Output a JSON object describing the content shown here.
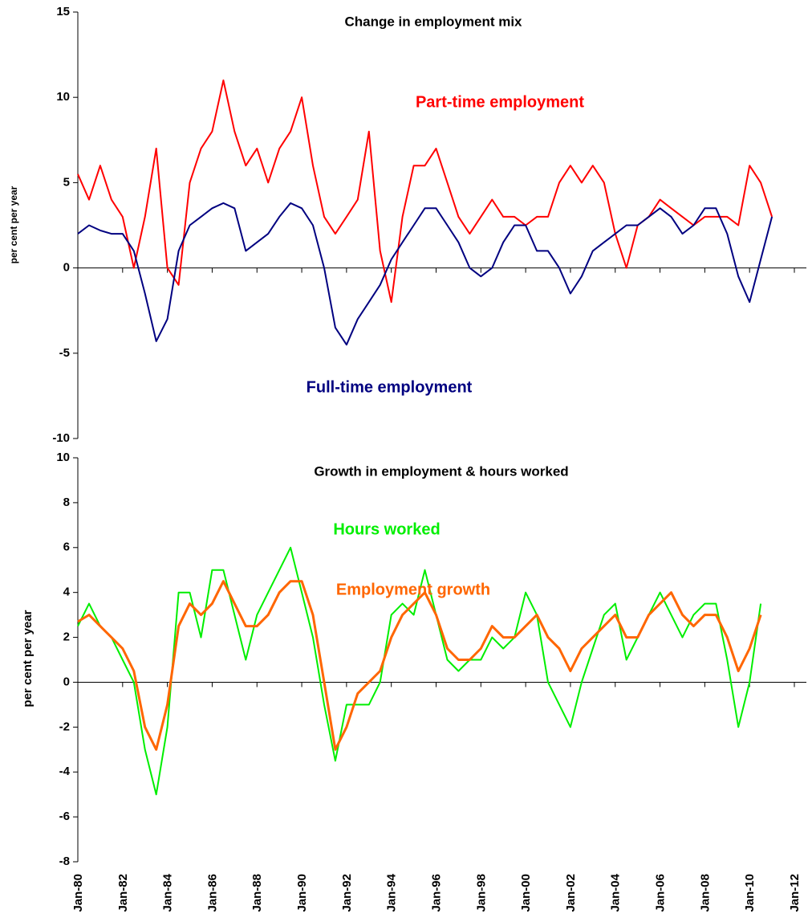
{
  "chart_data": [
    {
      "type": "line",
      "title": "Change in employment mix",
      "y_label": "per cent per year",
      "x": [
        1980,
        1980.5,
        1981,
        1981.5,
        1982,
        1982.5,
        1983,
        1983.5,
        1984,
        1984.5,
        1985,
        1985.5,
        1986,
        1986.5,
        1987,
        1987.5,
        1988,
        1988.5,
        1989,
        1989.5,
        1990,
        1990.5,
        1991,
        1991.5,
        1992,
        1992.5,
        1993,
        1993.5,
        1994,
        1994.5,
        1995,
        1995.5,
        1996,
        1996.5,
        1997,
        1997.5,
        1998,
        1998.5,
        1999,
        1999.5,
        2000,
        2000.5,
        2001,
        2001.5,
        2002,
        2002.5,
        2003,
        2003.5,
        2004,
        2004.5,
        2005,
        2005.5,
        2006,
        2006.5,
        2007,
        2007.5,
        2008,
        2008.5,
        2009,
        2009.5,
        2010,
        2010.5,
        2011
      ],
      "xlim": [
        1980,
        2012
      ],
      "xticks": [
        1980,
        1982,
        1984,
        1986,
        1988,
        1990,
        1992,
        1994,
        1996,
        1998,
        2000,
        2002,
        2004,
        2006,
        2008,
        2010,
        2012
      ],
      "ylim": [
        -10,
        15
      ],
      "yticks": [
        -10,
        -5,
        0,
        5,
        10,
        15
      ],
      "series": [
        {
          "name": "Part-time employment",
          "color": "#ff0000",
          "values": [
            5.5,
            4,
            6,
            4,
            3,
            0,
            3,
            7,
            0,
            -1,
            5,
            7,
            8,
            11,
            8,
            6,
            7,
            5,
            7,
            8,
            10,
            6,
            3,
            2,
            3,
            4,
            8,
            1,
            -2,
            3,
            6,
            6,
            7,
            5,
            3,
            2,
            3,
            4,
            3,
            3,
            2.5,
            3,
            3,
            5,
            6,
            5,
            6,
            5,
            2,
            0,
            2.5,
            3,
            4,
            3.5,
            3,
            2.5,
            3,
            3,
            3,
            2.5,
            6,
            5,
            3
          ]
        },
        {
          "name": "Full-time employment",
          "color": "#000080",
          "values": [
            2,
            2.5,
            2.2,
            2,
            2,
            1,
            -1.5,
            -4.3,
            -3,
            1,
            2.5,
            3,
            3.5,
            3.8,
            3.5,
            1,
            1.5,
            2,
            3,
            3.8,
            3.5,
            2.5,
            0,
            -3.5,
            -4.5,
            -3,
            -2,
            -1,
            0.5,
            1.5,
            2.5,
            3.5,
            3.5,
            2.5,
            1.5,
            0,
            -0.5,
            0,
            1.5,
            2.5,
            2.5,
            1,
            1,
            0,
            -1.5,
            -0.5,
            1,
            1.5,
            2,
            2.5,
            2.5,
            3,
            3.5,
            3,
            2,
            2.5,
            3.5,
            3.5,
            2,
            -0.5,
            -2,
            0.5,
            3
          ]
        }
      ]
    },
    {
      "type": "line",
      "title": "Growth in employment & hours worked",
      "y_label": "per cent per year",
      "x": [
        1980,
        1980.5,
        1981,
        1981.5,
        1982,
        1982.5,
        1983,
        1983.5,
        1984,
        1984.5,
        1985,
        1985.5,
        1986,
        1986.5,
        1987,
        1987.5,
        1988,
        1988.5,
        1989,
        1989.5,
        1990,
        1990.5,
        1991,
        1991.5,
        1992,
        1992.5,
        1993,
        1993.5,
        1994,
        1994.5,
        1995,
        1995.5,
        1996,
        1996.5,
        1997,
        1997.5,
        1998,
        1998.5,
        1999,
        1999.5,
        2000,
        2000.5,
        2001,
        2001.5,
        2002,
        2002.5,
        2003,
        2003.5,
        2004,
        2004.5,
        2005,
        2005.5,
        2006,
        2006.5,
        2007,
        2007.5,
        2008,
        2008.5,
        2009,
        2009.5,
        2010,
        2010.5
      ],
      "xlim": [
        1980,
        2012
      ],
      "xticks": [
        {
          "value": 1980,
          "label": "Jan-80"
        },
        {
          "value": 1982,
          "label": "Jan-82"
        },
        {
          "value": 1984,
          "label": "Jan-84"
        },
        {
          "value": 1986,
          "label": "Jan-86"
        },
        {
          "value": 1988,
          "label": "Jan-88"
        },
        {
          "value": 1990,
          "label": "Jan-90"
        },
        {
          "value": 1992,
          "label": "Jan-92"
        },
        {
          "value": 1994,
          "label": "Jan-94"
        },
        {
          "value": 1996,
          "label": "Jan-96"
        },
        {
          "value": 1998,
          "label": "Jan-98"
        },
        {
          "value": 2000,
          "label": "Jan-00"
        },
        {
          "value": 2002,
          "label": "Jan-02"
        },
        {
          "value": 2004,
          "label": "Jan-04"
        },
        {
          "value": 2006,
          "label": "Jan-06"
        },
        {
          "value": 2008,
          "label": "Jan-08"
        },
        {
          "value": 2010,
          "label": "Jan-10"
        },
        {
          "value": 2012,
          "label": "Jan-12"
        }
      ],
      "ylim": [
        -8,
        10
      ],
      "yticks": [
        -8,
        -6,
        -4,
        -2,
        0,
        2,
        4,
        6,
        8,
        10
      ],
      "series": [
        {
          "name": "Hours worked",
          "color": "#00ee00",
          "values": [
            2.5,
            3.5,
            2.5,
            2,
            1,
            0,
            -3,
            -5,
            -2,
            4,
            4,
            2,
            5,
            5,
            3,
            1,
            3,
            4,
            5,
            6,
            4,
            2,
            -1,
            -3.5,
            -1,
            -1,
            -1,
            0,
            3,
            3.5,
            3,
            5,
            3,
            1,
            0.5,
            1,
            1,
            2,
            1.5,
            2,
            4,
            3,
            0,
            -1,
            -2,
            0,
            1.5,
            3,
            3.5,
            1,
            2,
            3,
            4,
            3,
            2,
            3,
            3.5,
            3.5,
            1,
            -2,
            0,
            3.5
          ]
        },
        {
          "name": "Employment growth",
          "color": "#ff6600",
          "values": [
            2.7,
            3,
            2.5,
            2,
            1.5,
            0.5,
            -2,
            -3,
            -1,
            2.5,
            3.5,
            3,
            3.5,
            4.5,
            3.5,
            2.5,
            2.5,
            3,
            4,
            4.5,
            4.5,
            3,
            0,
            -3,
            -2,
            -0.5,
            0,
            0.5,
            2,
            3,
            3.5,
            4,
            3,
            1.5,
            1,
            1,
            1.5,
            2.5,
            2,
            2,
            2.5,
            3,
            2,
            1.5,
            0.5,
            1.5,
            2,
            2.5,
            3,
            2,
            2,
            3,
            3.5,
            4,
            3,
            2.5,
            3,
            3,
            2,
            0.5,
            1.5,
            3
          ]
        }
      ]
    }
  ]
}
